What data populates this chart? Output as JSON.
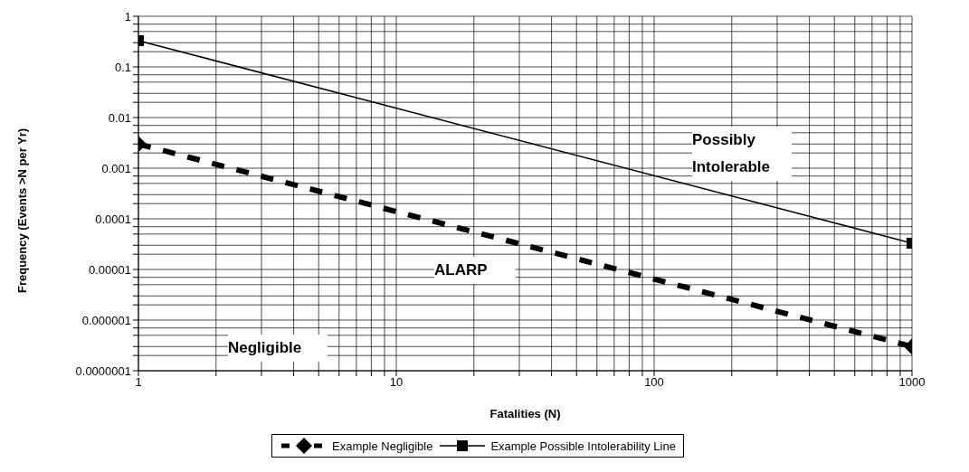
{
  "chart_data": {
    "type": "line",
    "xlabel": "Fatalities (N)",
    "ylabel": "Frequency (Events >N per Yr)",
    "series": [
      {
        "name": "Example Negligible",
        "color": "#000000",
        "values": [
          0.003,
          3e-07
        ],
        "line_style": "dashed",
        "marker": "diamond"
      },
      {
        "name": "Example Possible Intolerability Line",
        "color": "#000000",
        "values": [
          0.33,
          3.3e-05
        ],
        "line_style": "solid",
        "marker": "square"
      }
    ],
    "x": [
      1,
      1000
    ],
    "log": "xy",
    "xlim": [
      1,
      1000
    ],
    "ylim": [
      1e-07,
      1
    ],
    "xticks": [
      1,
      {
        "value": 2,
        "label": null
      },
      {
        "value": 3,
        "label": null
      },
      {
        "value": 4,
        "label": null
      },
      {
        "value": 5,
        "label": null
      },
      {
        "value": 6,
        "label": null
      },
      {
        "value": 7,
        "label": null
      },
      {
        "value": 8,
        "label": null
      },
      {
        "value": 9,
        "label": null
      },
      10,
      {
        "value": 20,
        "label": null
      },
      {
        "value": 30,
        "label": null
      },
      {
        "value": 40,
        "label": null
      },
      {
        "value": 50,
        "label": null
      },
      {
        "value": 60,
        "label": null
      },
      {
        "value": 70,
        "label": null
      },
      {
        "value": 80,
        "label": null
      },
      {
        "value": 90,
        "label": null
      },
      100,
      {
        "value": 200,
        "label": null
      },
      {
        "value": 300,
        "label": null
      },
      {
        "value": 400,
        "label": null
      },
      {
        "value": 500,
        "label": null
      },
      {
        "value": 600,
        "label": null
      },
      {
        "value": 700,
        "label": null
      },
      {
        "value": 800,
        "label": null
      },
      {
        "value": 900,
        "label": null
      },
      1000
    ],
    "yticks": [
      {
        "value": 1e-07,
        "label": "0.0000001"
      },
      {
        "value": 2e-07,
        "label": null
      },
      {
        "value": 3e-07,
        "label": null
      },
      {
        "value": 5e-07,
        "label": null
      },
      {
        "value": 7e-07,
        "label": null
      },
      {
        "value": 1e-06,
        "label": "0.000001"
      },
      {
        "value": 2e-06,
        "label": null
      },
      {
        "value": 3e-06,
        "label": null
      },
      {
        "value": 5e-06,
        "label": null
      },
      {
        "value": 7e-06,
        "label": null
      },
      {
        "value": 1e-05,
        "label": "0.00001"
      },
      {
        "value": 2e-05,
        "label": null
      },
      {
        "value": 3e-05,
        "label": null
      },
      {
        "value": 5e-05,
        "label": null
      },
      {
        "value": 7e-05,
        "label": null
      },
      0.0001,
      {
        "value": 0.0002,
        "label": null
      },
      {
        "value": 0.0003,
        "label": null
      },
      {
        "value": 0.0005,
        "label": null
      },
      {
        "value": 0.0007,
        "label": null
      },
      0.001,
      {
        "value": 0.002,
        "label": null
      },
      {
        "value": 0.003,
        "label": null
      },
      {
        "value": 0.005,
        "label": null
      },
      {
        "value": 0.007,
        "label": null
      },
      0.01,
      {
        "value": 0.02,
        "label": null
      },
      {
        "value": 0.03,
        "label": null
      },
      {
        "value": 0.05,
        "label": null
      },
      {
        "value": 0.07,
        "label": null
      },
      0.1,
      {
        "value": 0.2,
        "label": null
      },
      {
        "value": 0.3,
        "label": null
      },
      {
        "value": 0.5,
        "label": null
      },
      {
        "value": 0.7,
        "label": null
      },
      1
    ],
    "grid": true,
    "legend": "bottom",
    "annotations": [
      "Possibly Intolerable",
      "ALARP",
      "Negligible"
    ]
  }
}
